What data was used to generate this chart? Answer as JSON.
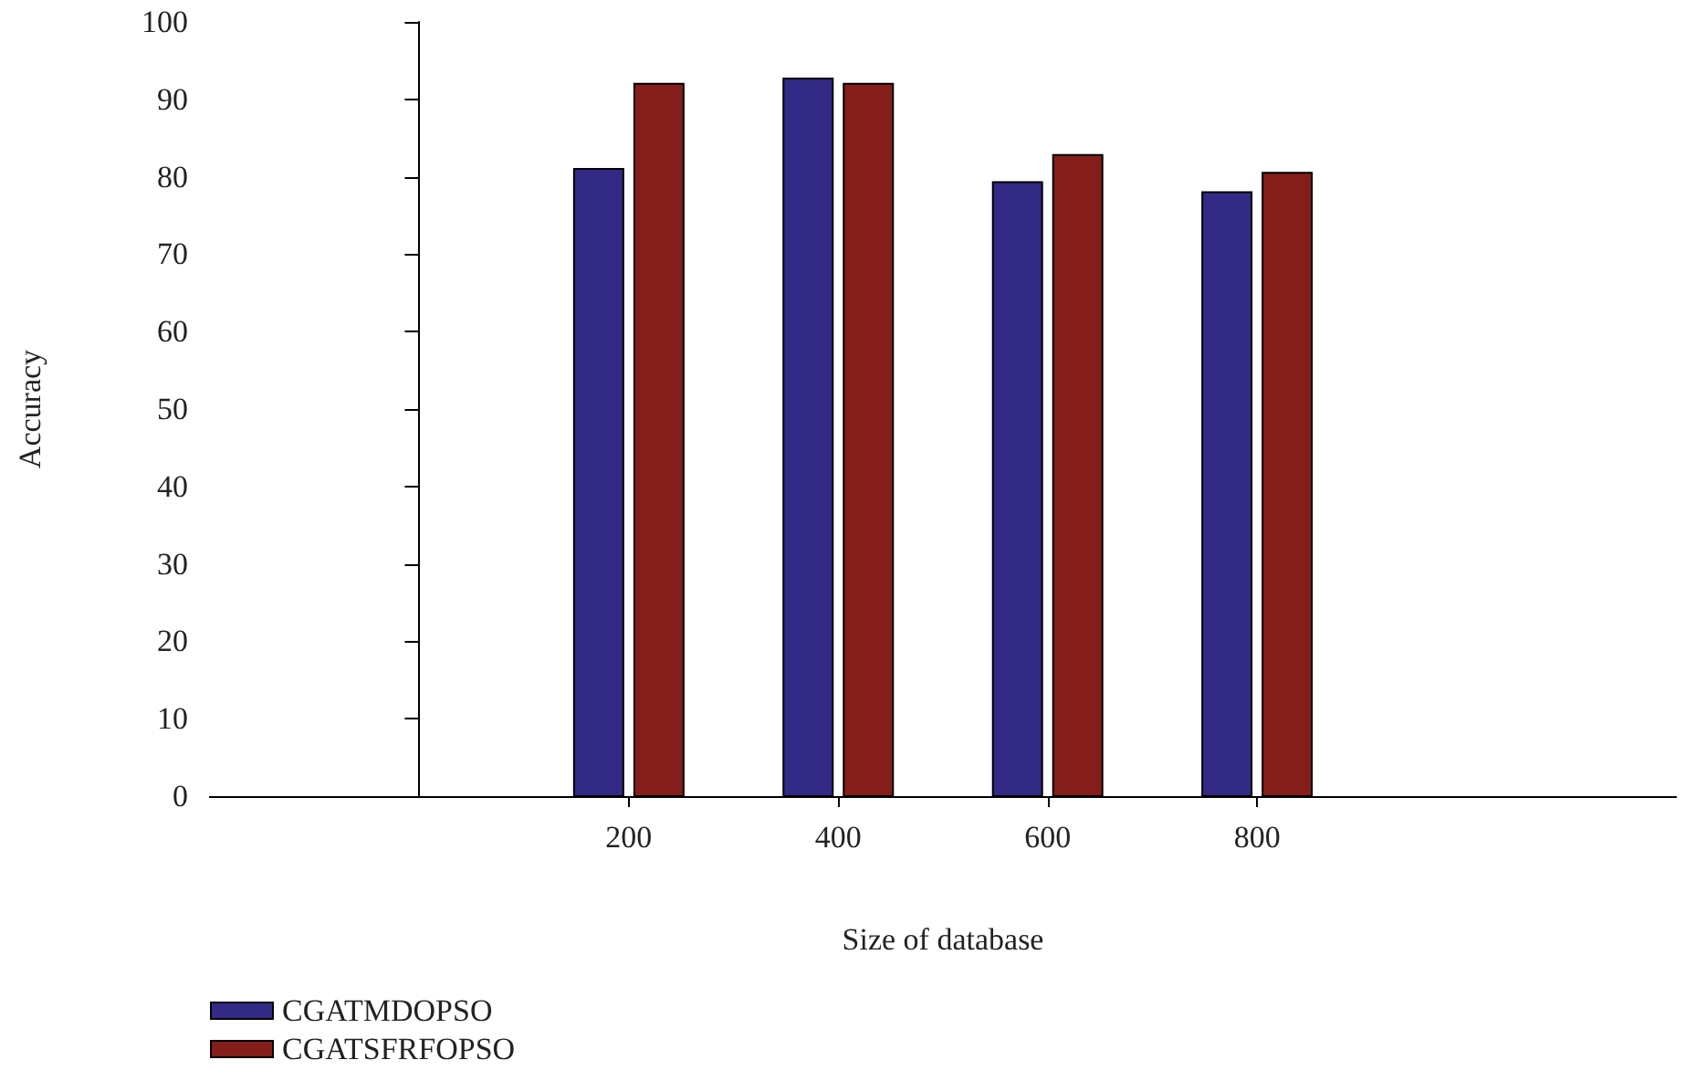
{
  "chart_data": {
    "type": "bar",
    "xlabel": "Size of database",
    "ylabel": "Accuracy",
    "x": [
      200,
      400,
      600,
      800
    ],
    "series": [
      {
        "name": "CGATMDOPSO",
        "color": "#332a85",
        "values": [
          81,
          92.7,
          79.3,
          78
        ]
      },
      {
        "name": "CGATSFRFOPSO",
        "color": "#841e1a",
        "values": [
          92,
          92,
          82.8,
          80.5
        ]
      }
    ],
    "xlim": [
      -200,
      1200
    ],
    "xticks": [
      200,
      400,
      600,
      800
    ],
    "ylim": [
      0,
      100
    ],
    "yticks": [
      0,
      10,
      20,
      30,
      40,
      50,
      60,
      70,
      80,
      90,
      100
    ],
    "grid": false,
    "legend": "bottom left"
  }
}
